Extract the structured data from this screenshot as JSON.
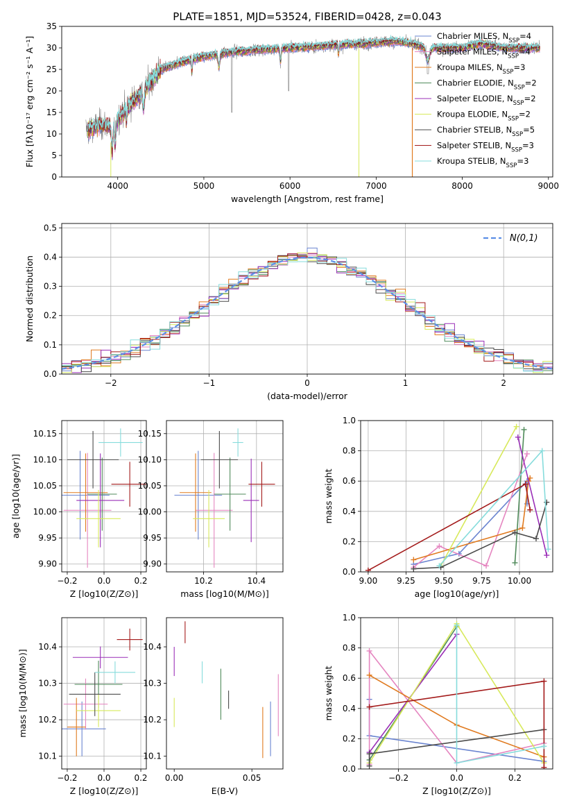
{
  "palette": {
    "Chabrier MILES": "#6a84d0",
    "Salpeter MILES": "#e586c0",
    "Kroupa MILES": "#e07a1f",
    "Chabrier ELODIE": "#4f8a5a",
    "Salpeter ELODIE": "#9a2fb7",
    "Kroupa ELODIE": "#d7e95a",
    "Chabrier STELIB": "#4a4a4a",
    "Salpeter STELIB": "#a31a1a",
    "Kroupa STELIB": "#86dcdc",
    "normal": "#5b8ee6"
  },
  "chart_data": [
    {
      "id": "spectrum",
      "type": "line",
      "title": "PLATE=1851, MJD=53524, FIBERID=0428, z=0.043",
      "xlabel": "wavelength [Angstrom, rest frame]",
      "ylabel": "Flux [fλ10⁻¹⁷ erg cm⁻² s⁻¹ A⁻¹]",
      "xlim": [
        3350,
        9050
      ],
      "ylim": [
        0,
        35
      ],
      "xticks": [
        4000,
        5000,
        6000,
        7000,
        8000,
        9000
      ],
      "yticks": [
        0,
        5,
        10,
        15,
        20,
        25,
        30,
        35
      ],
      "legend_position": "upper-right",
      "legend": [
        "Chabrier MILES, N_SSP=4",
        "Salpeter MILES, N_SSP=4",
        "Kroupa MILES, N_SSP=3",
        "Chabrier ELODIE, N_SSP=2",
        "Salpeter ELODIE, N_SSP=2",
        "Kroupa ELODIE, N_SSP=2",
        "Chabrier STELIB, N_SSP=5",
        "Salpeter STELIB, N_SSP=3",
        "Kroupa STELIB, N_SSP=3"
      ],
      "continuum": {
        "x": [
          3650,
          3800,
          3950,
          4100,
          4300,
          4500,
          4800,
          5000,
          5300,
          5600,
          6000,
          6400,
          6800,
          7200,
          7400,
          7600,
          8000,
          8200,
          8500,
          8800
        ],
        "y": [
          11,
          12,
          12,
          16,
          20,
          25,
          27,
          28,
          29,
          29.5,
          30,
          30.5,
          31,
          31.5,
          31,
          30,
          30,
          31,
          30,
          30
        ]
      },
      "data_line_start": 3630
    },
    {
      "id": "residuals",
      "type": "step",
      "xlabel": "(data-model)/error",
      "ylabel": "Normed distribution",
      "xlim": [
        -2.5,
        2.5
      ],
      "ylim": [
        0,
        0.515
      ],
      "xticks": [
        -2,
        -1,
        0,
        1,
        2
      ],
      "yticks": [
        0.0,
        0.1,
        0.2,
        0.3,
        0.4,
        0.5
      ],
      "grid": true,
      "legend_position": "upper-right",
      "legend": "N(0,1)",
      "bin_width": 0.1,
      "bins_start": -2.5
    },
    {
      "id": "age_vs_Z",
      "type": "errorbar",
      "xlabel": "Z [log10(Z/Z⊙)]",
      "ylabel": "age [log10(age/yr)]",
      "xlim": [
        -0.23,
        0.23
      ],
      "ylim": [
        9.885,
        10.175
      ],
      "xticks": [
        -0.2,
        0.0,
        0.2
      ],
      "yticks": [
        9.9,
        9.95,
        10.0,
        10.05,
        10.1,
        10.15
      ],
      "grid": true,
      "points": [
        {
          "model": "Chabrier MILES",
          "x": -0.13,
          "xerr": 0.16,
          "y": 10.032,
          "yerr": 0.085
        },
        {
          "model": "Salpeter MILES",
          "x": -0.09,
          "xerr": 0.13,
          "y": 10.003,
          "yerr": 0.11
        },
        {
          "model": "Kroupa MILES",
          "x": -0.1,
          "xerr": 0.12,
          "y": 10.037,
          "yerr": 0.075
        },
        {
          "model": "Chabrier ELODIE",
          "x": -0.01,
          "xerr": 0.08,
          "y": 10.034,
          "yerr": 0.07
        },
        {
          "model": "Salpeter ELODIE",
          "x": -0.02,
          "xerr": 0.13,
          "y": 10.022,
          "yerr": 0.09
        },
        {
          "model": "Kroupa ELODIE",
          "x": -0.03,
          "xerr": 0.12,
          "y": 9.987,
          "yerr": 0.055
        },
        {
          "model": "Chabrier STELIB",
          "x": -0.06,
          "xerr": 0.14,
          "y": 10.1,
          "yerr": 0.055
        },
        {
          "model": "Salpeter STELIB",
          "x": 0.14,
          "xerr": 0.1,
          "y": 10.053,
          "yerr": 0.043
        },
        {
          "model": "Kroupa STELIB",
          "x": 0.09,
          "xerr": 0.12,
          "y": 10.133,
          "yerr": 0.027
        }
      ]
    },
    {
      "id": "age_vs_mass",
      "type": "errorbar",
      "xlabel": "mass [log10(M/M⊙)]",
      "ylabel": "",
      "xlim": [
        10.06,
        10.5
      ],
      "ylim": [
        9.885,
        10.175
      ],
      "xticks": [
        10.2,
        10.4
      ],
      "yticks": [
        9.9,
        9.95,
        10.0,
        10.05,
        10.1,
        10.15
      ],
      "grid": true,
      "points": [
        {
          "model": "Chabrier MILES",
          "x": 10.18,
          "xerr": 0.09,
          "y": 10.032,
          "yerr": 0.085
        },
        {
          "model": "Salpeter MILES",
          "x": 10.24,
          "xerr": 0.07,
          "y": 10.003,
          "yerr": 0.11
        },
        {
          "model": "Kroupa MILES",
          "x": 10.17,
          "xerr": 0.06,
          "y": 10.037,
          "yerr": 0.075
        },
        {
          "model": "Chabrier ELODIE",
          "x": 10.3,
          "xerr": 0.06,
          "y": 10.034,
          "yerr": 0.07
        },
        {
          "model": "Salpeter ELODIE",
          "x": 10.38,
          "xerr": 0.03,
          "y": 10.022,
          "yerr": 0.08
        },
        {
          "model": "Kroupa ELODIE",
          "x": 10.22,
          "xerr": 0.06,
          "y": 9.987,
          "yerr": 0.055
        },
        {
          "model": "Chabrier STELIB",
          "x": 10.26,
          "xerr": 0.07,
          "y": 10.1,
          "yerr": 0.055
        },
        {
          "model": "Salpeter STELIB",
          "x": 10.42,
          "xerr": 0.05,
          "y": 10.053,
          "yerr": 0.043
        },
        {
          "model": "Kroupa STELIB",
          "x": 10.33,
          "xerr": 0.02,
          "y": 10.133,
          "yerr": 0.027
        }
      ]
    },
    {
      "id": "weight_vs_age",
      "type": "line",
      "xlabel": "age [log10(age/yr)]",
      "ylabel": "mass weight",
      "xlim": [
        8.95,
        10.22
      ],
      "ylim": [
        0,
        1
      ],
      "xticks": [
        9.0,
        9.25,
        9.5,
        9.75,
        10.0
      ],
      "yticks": [
        0.0,
        0.2,
        0.4,
        0.6,
        0.8,
        1.0
      ],
      "grid": true,
      "series": [
        {
          "model": "Chabrier MILES",
          "x": [
            9.3,
            9.6,
            10.05,
            10.05
          ],
          "y": [
            0.05,
            0.12,
            0.6,
            0.45
          ]
        },
        {
          "model": "Salpeter MILES",
          "x": [
            9.3,
            9.47,
            9.78,
            10.05
          ],
          "y": [
            0.03,
            0.17,
            0.04,
            0.78
          ]
        },
        {
          "model": "Kroupa MILES",
          "x": [
            9.3,
            10.02,
            10.06,
            10.07
          ],
          "y": [
            0.08,
            0.29,
            0.6,
            0.62
          ]
        },
        {
          "model": "Chabrier ELODIE",
          "x": [
            9.97,
            10.03
          ],
          "y": [
            0.06,
            0.94
          ]
        },
        {
          "model": "Salpeter ELODIE",
          "x": [
            9.99,
            10.18
          ],
          "y": [
            0.89,
            0.11
          ]
        },
        {
          "model": "Kroupa ELODIE",
          "x": [
            9.48,
            9.98
          ],
          "y": [
            0.04,
            0.96
          ]
        },
        {
          "model": "Chabrier STELIB",
          "x": [
            9.3,
            9.48,
            9.97,
            10.11,
            10.18
          ],
          "y": [
            0.02,
            0.03,
            0.26,
            0.22,
            0.46
          ]
        },
        {
          "model": "Salpeter STELIB",
          "x": [
            9.0,
            10.04,
            10.07
          ],
          "y": [
            0.01,
            0.58,
            0.41
          ]
        },
        {
          "model": "Kroupa STELIB",
          "x": [
            9.47,
            10.15,
            10.19
          ],
          "y": [
            0.04,
            0.8,
            0.15
          ]
        }
      ]
    },
    {
      "id": "mass_vs_Z",
      "type": "errorbar",
      "xlabel": "Z [log10(Z/Z⊙)]",
      "ylabel": "mass [log10(M/M⊙)]",
      "xlim": [
        -0.23,
        0.23
      ],
      "ylim": [
        10.065,
        10.48
      ],
      "xticks": [
        -0.2,
        0.0,
        0.2
      ],
      "yticks": [
        10.1,
        10.2,
        10.3,
        10.4
      ],
      "grid": true,
      "points": [
        {
          "model": "Chabrier MILES",
          "x": -0.12,
          "xerr": 0.13,
          "y": 10.175,
          "yerr": 0.075
        },
        {
          "model": "Salpeter MILES",
          "x": -0.1,
          "xerr": 0.12,
          "y": 10.243,
          "yerr": 0.07
        },
        {
          "model": "Kroupa MILES",
          "x": -0.15,
          "xerr": 0.05,
          "y": 10.18,
          "yerr": 0.08
        },
        {
          "model": "Chabrier ELODIE",
          "x": -0.03,
          "xerr": 0.13,
          "y": 10.297,
          "yerr": 0.065
        },
        {
          "model": "Salpeter ELODIE",
          "x": -0.02,
          "xerr": 0.15,
          "y": 10.371,
          "yerr": 0.03
        },
        {
          "model": "Kroupa ELODIE",
          "x": -0.03,
          "xerr": 0.12,
          "y": 10.225,
          "yerr": 0.045
        },
        {
          "model": "Chabrier STELIB",
          "x": -0.05,
          "xerr": 0.14,
          "y": 10.27,
          "yerr": 0.06
        },
        {
          "model": "Salpeter STELIB",
          "x": 0.14,
          "xerr": 0.07,
          "y": 10.42,
          "yerr": 0.03
        },
        {
          "model": "Kroupa STELIB",
          "x": 0.06,
          "xerr": 0.11,
          "y": 10.33,
          "yerr": 0.03
        }
      ]
    },
    {
      "id": "mass_vs_ebv",
      "type": "errorbar",
      "xlabel": "E(B-V)",
      "ylabel": "",
      "xlim": [
        -0.005,
        0.07
      ],
      "ylim": [
        10.065,
        10.48
      ],
      "xticks": [
        0.0,
        0.05
      ],
      "yticks": [
        10.1,
        10.2,
        10.3,
        10.4
      ],
      "grid": false,
      "points": [
        {
          "model": "Chabrier MILES",
          "x": 0.062,
          "xerr": 0,
          "y": 10.175,
          "yerr": 0.075
        },
        {
          "model": "Salpeter MILES",
          "x": 0.067,
          "xerr": 0,
          "y": 10.24,
          "yerr": 0.085
        },
        {
          "model": "Kroupa MILES",
          "x": 0.057,
          "xerr": 0,
          "y": 10.165,
          "yerr": 0.07
        },
        {
          "model": "Chabrier ELODIE",
          "x": 0.03,
          "xerr": 0,
          "y": 10.27,
          "yerr": 0.07
        },
        {
          "model": "Salpeter ELODIE",
          "x": 0.0,
          "xerr": 0,
          "y": 10.36,
          "yerr": 0.04
        },
        {
          "model": "Kroupa ELODIE",
          "x": 0.0,
          "xerr": 0,
          "y": 10.22,
          "yerr": 0.04
        },
        {
          "model": "Chabrier STELIB",
          "x": 0.035,
          "xerr": 0,
          "y": 10.255,
          "yerr": 0.025
        },
        {
          "model": "Salpeter STELIB",
          "x": 0.007,
          "xerr": 0,
          "y": 10.44,
          "yerr": 0.03
        },
        {
          "model": "Kroupa STELIB",
          "x": 0.018,
          "xerr": 0,
          "y": 10.33,
          "yerr": 0.03
        }
      ]
    },
    {
      "id": "weight_vs_Z",
      "type": "line",
      "xlabel": "Z [log10(Z/Z⊙)]",
      "ylabel": "mass weight",
      "xlim": [
        -0.33,
        0.33
      ],
      "ylim": [
        0,
        1
      ],
      "xticks": [
        -0.2,
        0.0,
        0.2
      ],
      "yticks": [
        0.0,
        0.2,
        0.4,
        0.6,
        0.8,
        1.0
      ],
      "grid": true,
      "series": [
        {
          "model": "Chabrier MILES",
          "x": [
            -0.3,
            -0.3,
            0.3
          ],
          "y": [
            0.46,
            0.22,
            0.05
          ]
        },
        {
          "model": "Salpeter MILES",
          "x": [
            -0.3,
            -0.3,
            0.0,
            0.3
          ],
          "y": [
            0.03,
            0.78,
            0.04,
            0.17
          ]
        },
        {
          "model": "Kroupa MILES",
          "x": [
            -0.3,
            0.0,
            0.3
          ],
          "y": [
            0.62,
            0.29,
            0.08
          ]
        },
        {
          "model": "Chabrier ELODIE",
          "x": [
            -0.3,
            0.0
          ],
          "y": [
            0.06,
            0.94
          ]
        },
        {
          "model": "Salpeter ELODIE",
          "x": [
            -0.3,
            0.0
          ],
          "y": [
            0.11,
            0.89
          ]
        },
        {
          "model": "Kroupa ELODIE",
          "x": [
            -0.3,
            0.0,
            0.3
          ],
          "y": [
            0.04,
            0.96,
            0.04
          ]
        },
        {
          "model": "Chabrier STELIB",
          "x": [
            -0.3,
            -0.3,
            0.3
          ],
          "y": [
            0.02,
            0.1,
            0.26
          ]
        },
        {
          "model": "Salpeter STELIB",
          "x": [
            -0.3,
            0.3,
            0.3
          ],
          "y": [
            0.41,
            0.58,
            0.01
          ]
        },
        {
          "model": "Kroupa STELIB",
          "x": [
            0.0,
            0.0,
            0.3
          ],
          "y": [
            0.95,
            0.04,
            0.15
          ]
        }
      ]
    }
  ]
}
